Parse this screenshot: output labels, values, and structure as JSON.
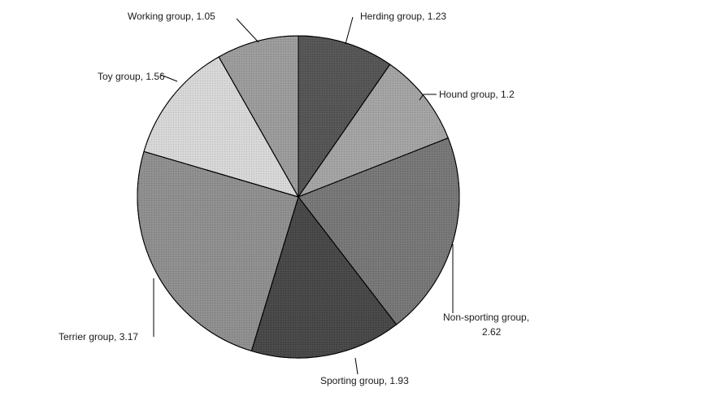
{
  "chart_data": {
    "type": "pie",
    "title": "",
    "legend": "none",
    "start_angle_deg": 0,
    "direction": "clockwise",
    "slices": [
      {
        "name": "Herding group",
        "value": 1.23,
        "label_line1": "Herding group, 1.23",
        "label_line2": "",
        "color": "#555555",
        "texture": "stipple-dark"
      },
      {
        "name": "Hound group",
        "value": 1.2,
        "label_line1": "Hound group, 1.2",
        "label_line2": "",
        "color": "#a2a2a2",
        "texture": "stipple-light"
      },
      {
        "name": "Non-sporting group",
        "value": 2.62,
        "label_line1": "Non-sporting group,",
        "label_line2": "2.62",
        "color": "#777777",
        "texture": "stipple-dark"
      },
      {
        "name": "Sporting group",
        "value": 1.93,
        "label_line1": "Sporting group, 1.93",
        "label_line2": "",
        "color": "#474747",
        "texture": "stipple-dark"
      },
      {
        "name": "Terrier group",
        "value": 3.17,
        "label_line1": "Terrier group, 3.17",
        "label_line2": "",
        "color": "#8d8d8d",
        "texture": "stipple-light"
      },
      {
        "name": "Toy group",
        "value": 1.56,
        "label_line1": "Toy group, 1.56",
        "label_line2": "",
        "color": "#d6d6d6",
        "texture": "stipple-light"
      },
      {
        "name": "Working group",
        "value": 1.05,
        "label_line1": "Working group, 1.05",
        "label_line2": "",
        "color": "#9a9a9a",
        "texture": "stipple-light"
      }
    ]
  }
}
